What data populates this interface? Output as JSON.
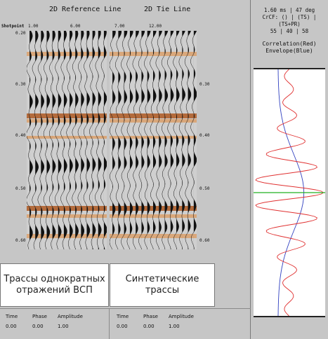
{
  "left_panel": {
    "reference_title": "2D Reference Line",
    "tie_title": "2D Tie Line",
    "shotpoint_label": "Shotpoint",
    "shotpoints": [
      "1.00",
      "6.00",
      "7.00",
      "12.00"
    ],
    "time_ticks_left": [
      "0.20",
      "0.30",
      "0.40",
      "0.50",
      "0.60"
    ],
    "time_ticks_right": [
      "0.30",
      "0.40",
      "0.50",
      "0.60"
    ]
  },
  "captions": {
    "vsp": "Трассы однократных отражений ВСП",
    "synthetic": "Синтетические трассы"
  },
  "readout_left": {
    "time_label": "Time",
    "phase_label": "Phase",
    "amplitude_label": "Amplitude",
    "time_value": "0.00",
    "phase_value": "0.00",
    "amplitude_value": "1.00"
  },
  "readout_right": {
    "time_label": "Time",
    "phase_label": "Phase",
    "amplitude_label": "Amplitude",
    "time_value": "0.00",
    "phase_value": "0.00",
    "amplitude_value": "1.00"
  },
  "right_panel": {
    "stats_line1": "1.60 ms | 47 deg",
    "stats_line2": "CrCF: () | (TS) | (TS+PR)",
    "stats_line3": "55 | 40 | 58",
    "title_line1": "Correlation(Red)",
    "title_line2": "Envelope(Blue)",
    "colors": {
      "correlation": "#e03030",
      "envelope": "#3040c0",
      "zero_line": "#20b020"
    }
  }
}
